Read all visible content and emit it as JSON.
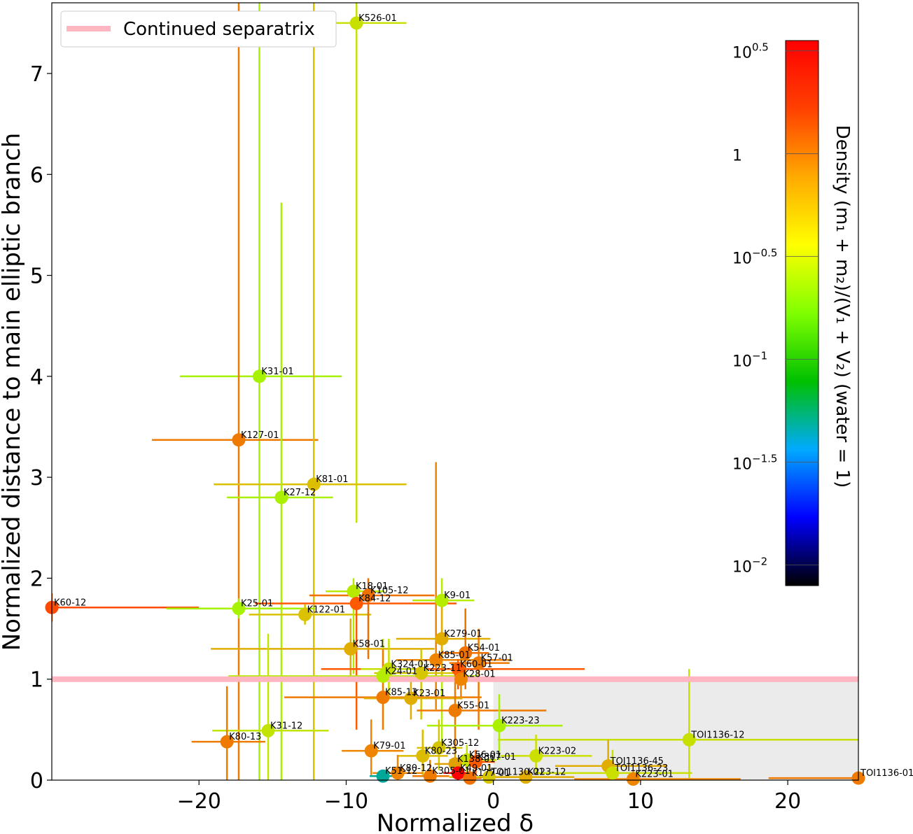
{
  "chart_data": {
    "type": "scatter",
    "xlabel": "Normalized δ",
    "ylabel": "Normalized distance to main elliptic branch",
    "xlim": [
      -30,
      24.8
    ],
    "ylim": [
      0,
      7.7
    ],
    "xticks": [
      -20,
      -10,
      0,
      10,
      20
    ],
    "xtick_labels": [
      "−20",
      "−10",
      "0",
      "10",
      "20"
    ],
    "yticks": [
      0,
      1,
      2,
      3,
      4,
      5,
      6,
      7
    ],
    "ytick_labels": [
      "0",
      "1",
      "2",
      "3",
      "4",
      "5",
      "6",
      "7"
    ],
    "grid": false,
    "legend": {
      "placement": "top-left",
      "entries": [
        {
          "label": "Continued separatrix",
          "color": "#ffb6c1"
        }
      ]
    },
    "separatrix_y": 1,
    "shaded_region": {
      "x": [
        0,
        24.8
      ],
      "y": [
        0,
        1
      ],
      "color": "#ebebeb"
    },
    "colorbar": {
      "label": "Density (m₁ + m₂)/(V₁ + V₂) (water = 1)",
      "scale": "log",
      "log_range": [
        -2.1,
        0.55
      ],
      "ticks": [
        {
          "log": 0.5,
          "base": "10",
          "exp": "0.5"
        },
        {
          "log": 0,
          "base": "1",
          "exp": ""
        },
        {
          "log": -0.5,
          "base": "10",
          "exp": "−0.5"
        },
        {
          "log": -1,
          "base": "10",
          "exp": "−1"
        },
        {
          "log": -1.5,
          "base": "10",
          "exp": "−1.5"
        },
        {
          "log": -2,
          "base": "10",
          "exp": "−2"
        }
      ],
      "colormap": [
        "#000000",
        "#0000ff",
        "#00aaff",
        "#00c000",
        "#80ff00",
        "#ffff00",
        "#ffaa00",
        "#ff4000",
        "#ff0000"
      ]
    },
    "points": [
      {
        "label": "K526-01",
        "x": -9.3,
        "y": 7.5,
        "xlo": -12.8,
        "xhi": -5.9,
        "ylo": 2.55,
        "yhi": 7.7,
        "color": "#c8e000"
      },
      {
        "label": "K31-01",
        "x": -15.9,
        "y": 4.0,
        "xlo": -21.3,
        "xhi": -10.3,
        "ylo": 0,
        "yhi": 7.7,
        "color": "#a6f200"
      },
      {
        "label": "K127-01",
        "x": -17.3,
        "y": 3.37,
        "xlo": -23.2,
        "xhi": -11.9,
        "ylo": 0,
        "yhi": 7.7,
        "color": "#ee7a00"
      },
      {
        "label": "K81-01",
        "x": -12.2,
        "y": 2.93,
        "xlo": -19.0,
        "xhi": -5.9,
        "ylo": 0,
        "yhi": 7.7,
        "color": "#dcc000"
      },
      {
        "label": "K27-12",
        "x": -14.4,
        "y": 2.8,
        "xlo": -18.1,
        "xhi": -10.9,
        "ylo": 0,
        "yhi": 5.72,
        "color": "#aaf000"
      },
      {
        "label": "K60-12",
        "x": -30.0,
        "y": 1.71,
        "xlo": -30.0,
        "xhi": -20.0,
        "ylo": 1.57,
        "yhi": 1.85,
        "color": "#ff4a00"
      },
      {
        "label": "K25-01",
        "x": -17.3,
        "y": 1.7,
        "xlo": -22.2,
        "xhi": -12.1,
        "ylo": 1.6,
        "yhi": 1.8,
        "color": "#a6f200"
      },
      {
        "label": "K122-01",
        "x": -12.8,
        "y": 1.64,
        "xlo": -16.6,
        "xhi": -8.3,
        "ylo": 1.54,
        "yhi": 1.74,
        "color": "#dac200"
      },
      {
        "label": "K18-01",
        "x": -9.5,
        "y": 1.87,
        "xlo": -11.4,
        "xhi": -7.4,
        "ylo": 1.05,
        "yhi": 2.0,
        "color": "#b8ea00"
      },
      {
        "label": "K105-12",
        "x": -8.5,
        "y": 1.83,
        "xlo": -12.5,
        "xhi": -4.0,
        "ylo": 1.2,
        "yhi": 2.0,
        "color": "#f07000"
      },
      {
        "label": "K84-12",
        "x": -9.3,
        "y": 1.75,
        "xlo": -16.2,
        "xhi": -2.5,
        "ylo": 0.5,
        "yhi": 1.9,
        "color": "#ff5a00"
      },
      {
        "label": "K9-01",
        "x": -3.5,
        "y": 1.78,
        "xlo": -5.5,
        "xhi": -1.3,
        "ylo": 0.3,
        "yhi": 2.0,
        "color": "#b6ec00"
      },
      {
        "label": "K58-01",
        "x": -9.7,
        "y": 1.3,
        "xlo": -19.2,
        "xhi": -4.0,
        "ylo": 1.0,
        "yhi": 1.6,
        "color": "#e0ad00"
      },
      {
        "label": "K279-01",
        "x": -3.5,
        "y": 1.4,
        "xlo": -6.6,
        "xhi": -0.2,
        "ylo": 1.0,
        "yhi": 1.8,
        "color": "#e0ad00"
      },
      {
        "label": "K54-01",
        "x": -1.9,
        "y": 1.26,
        "xlo": -3.6,
        "xhi": -0.3,
        "ylo": 0.9,
        "yhi": 1.7,
        "color": "#f07000"
      },
      {
        "label": "K85-01",
        "x": -3.9,
        "y": 1.19,
        "xlo": -6.6,
        "xhi": 1.2,
        "ylo": 0.7,
        "yhi": 3.15,
        "color": "#ee8400"
      },
      {
        "label": "K57-01",
        "x": -1.0,
        "y": 1.16,
        "xlo": -3.0,
        "xhi": 1.1,
        "ylo": 0.5,
        "yhi": 1.5,
        "color": "#ee7a00"
      },
      {
        "label": "K60-01",
        "x": -2.4,
        "y": 1.1,
        "xlo": -11.7,
        "xhi": 6.2,
        "ylo": 0.9,
        "yhi": 1.2,
        "color": "#ff5a00"
      },
      {
        "label": "K324-01",
        "x": -7.1,
        "y": 1.1,
        "xlo": -9.0,
        "xhi": -5.4,
        "ylo": 0.8,
        "yhi": 1.4,
        "color": "#c8e000"
      },
      {
        "label": "K223-11",
        "x": -4.9,
        "y": 1.06,
        "xlo": -8.1,
        "xhi": -1.9,
        "ylo": 0.6,
        "yhi": 1.3,
        "color": "#d6c600"
      },
      {
        "label": "K24-01",
        "x": -7.5,
        "y": 1.03,
        "xlo": -18.0,
        "xhi": -1.0,
        "ylo": 0.5,
        "yhi": 1.4,
        "color": "#b6ec00"
      },
      {
        "label": "K28-01",
        "x": -2.2,
        "y": 1.0,
        "xlo": -10.5,
        "xhi": 6.5,
        "ylo": 0.8,
        "yhi": 1.3,
        "color": "#ee8400"
      },
      {
        "label": "K85-13",
        "x": -7.5,
        "y": 0.82,
        "xlo": -14.2,
        "xhi": -0.8,
        "ylo": 0.5,
        "yhi": 1.3,
        "color": "#ee7a00"
      },
      {
        "label": "K23-01",
        "x": -5.6,
        "y": 0.81,
        "xlo": -8.8,
        "xhi": -2.1,
        "ylo": 0.6,
        "yhi": 1.0,
        "color": "#e0ad00"
      },
      {
        "label": "K55-01",
        "x": -2.6,
        "y": 0.69,
        "xlo": -5.2,
        "xhi": 3.6,
        "ylo": 0.3,
        "yhi": 1.1,
        "color": "#ee7a00"
      },
      {
        "label": "K223-23",
        "x": 0.4,
        "y": 0.54,
        "xlo": -4.5,
        "xhi": 4.7,
        "ylo": 0.2,
        "yhi": 0.85,
        "color": "#aaf000"
      },
      {
        "label": "K31-12",
        "x": -15.3,
        "y": 0.49,
        "xlo": -19.1,
        "xhi": -11.2,
        "ylo": 0,
        "yhi": 1.45,
        "color": "#c2e400"
      },
      {
        "label": "K80-13",
        "x": -18.1,
        "y": 0.38,
        "xlo": -20.5,
        "xhi": -15.5,
        "ylo": 0,
        "yhi": 0.93,
        "color": "#ee7a00"
      },
      {
        "label": "TOI1136-12",
        "x": 13.3,
        "y": 0.4,
        "xlo": 0.3,
        "xhi": 24.8,
        "ylo": 0,
        "yhi": 1.1,
        "color": "#c8e000"
      },
      {
        "label": "K79-01",
        "x": -8.3,
        "y": 0.29,
        "xlo": -10.3,
        "xhi": -6.1,
        "ylo": 0.05,
        "yhi": 0.6,
        "color": "#ee8400"
      },
      {
        "label": "K305-12",
        "x": -3.7,
        "y": 0.32,
        "xlo": -5.2,
        "xhi": -2.1,
        "ylo": 0.1,
        "yhi": 0.6,
        "color": "#d6c600"
      },
      {
        "label": "K80-23",
        "x": -4.8,
        "y": 0.24,
        "xlo": -6.5,
        "xhi": -3.1,
        "ylo": 0.05,
        "yhi": 0.5,
        "color": "#dcbc00"
      },
      {
        "label": "K223-02",
        "x": 2.9,
        "y": 0.24,
        "xlo": 0.5,
        "xhi": 6.7,
        "ylo": 0.05,
        "yhi": 0.45,
        "color": "#cce000"
      },
      {
        "label": "K56-01",
        "x": -1.8,
        "y": 0.2,
        "xlo": -3.0,
        "xhi": 0.2,
        "ylo": 0.05,
        "yhi": 0.35,
        "color": "#c8e000"
      },
      {
        "label": "K307-01",
        "x": -1.2,
        "y": 0.18,
        "xlo": -2.4,
        "xhi": 0.1,
        "ylo": 0.05,
        "yhi": 0.3,
        "color": "#ff5a00"
      },
      {
        "label": "K138-01",
        "x": -2.6,
        "y": 0.16,
        "xlo": -4.0,
        "xhi": -1.2,
        "ylo": 0.05,
        "yhi": 0.3,
        "color": "#e0a000"
      },
      {
        "label": "TOI1136-45",
        "x": 7.8,
        "y": 0.14,
        "xlo": 4.2,
        "xhi": 11.8,
        "ylo": 0.02,
        "yhi": 0.4,
        "color": "#e0ad00"
      },
      {
        "label": "TOI1136-23",
        "x": 8.1,
        "y": 0.07,
        "xlo": 3.0,
        "xhi": 13.5,
        "ylo": 0,
        "yhi": 0.3,
        "color": "#cce000"
      },
      {
        "label": "K80-12",
        "x": -6.5,
        "y": 0.07,
        "xlo": -8.2,
        "xhi": -4.8,
        "ylo": 0,
        "yhi": 0.25,
        "color": "#ee8400"
      },
      {
        "label": "K305-01",
        "x": -4.3,
        "y": 0.04,
        "xlo": -5.5,
        "xhi": -3.0,
        "ylo": 0,
        "yhi": 0.2,
        "color": "#ee7a00"
      },
      {
        "label": "K49-01",
        "x": -2.4,
        "y": 0.07,
        "xlo": -3.4,
        "xhi": -1.4,
        "ylo": 0,
        "yhi": 0.2,
        "color": "#ff0000"
      },
      {
        "label": "K51-12",
        "x": -7.5,
        "y": 0.04,
        "xlo": -8.4,
        "xhi": -6.6,
        "ylo": 0,
        "yhi": 0.1,
        "color": "#00a89a"
      },
      {
        "label": "K177-01",
        "x": -1.6,
        "y": 0.02,
        "xlo": -2.4,
        "xhi": -0.8,
        "ylo": 0,
        "yhi": 0.1,
        "color": "#f07000"
      },
      {
        "label": "TOI1130-01",
        "x": -0.3,
        "y": 0.03,
        "xlo": -3.0,
        "xhi": 4.0,
        "ylo": 0,
        "yhi": 0.15,
        "color": "#d6c600"
      },
      {
        "label": "K223-12",
        "x": 2.2,
        "y": 0.03,
        "xlo": -1.0,
        "xhi": 5.5,
        "ylo": 0,
        "yhi": 0.1,
        "color": "#e0ad00"
      },
      {
        "label": "K223-01",
        "x": 9.5,
        "y": 0.01,
        "xlo": 5.5,
        "xhi": 16.8,
        "ylo": 0,
        "yhi": 0.1,
        "color": "#ee8400"
      },
      {
        "label": "TOI1136-01",
        "x": 24.8,
        "y": 0.02,
        "xlo": 18.7,
        "xhi": 24.8,
        "ylo": 0,
        "yhi": 0.02,
        "color": "#ee7a00"
      }
    ]
  }
}
